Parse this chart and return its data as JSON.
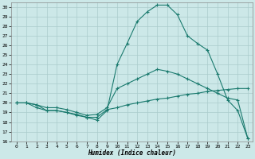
{
  "xlabel": "Humidex (Indice chaleur)",
  "xlim": [
    -0.5,
    23.5
  ],
  "ylim": [
    16,
    30.5
  ],
  "yticks": [
    16,
    17,
    18,
    19,
    20,
    21,
    22,
    23,
    24,
    25,
    26,
    27,
    28,
    29,
    30
  ],
  "xticks": [
    0,
    1,
    2,
    3,
    4,
    5,
    6,
    7,
    8,
    9,
    10,
    11,
    12,
    13,
    14,
    15,
    16,
    17,
    18,
    19,
    20,
    21,
    22,
    23
  ],
  "bg_color": "#cce8e8",
  "grid_color": "#aacccc",
  "line_color": "#1a7a6e",
  "line1_x": [
    0,
    1,
    2,
    3,
    4,
    5,
    6,
    7,
    8,
    9,
    10,
    11,
    12,
    13,
    14,
    15,
    16,
    17,
    18,
    19,
    20,
    21,
    22,
    23
  ],
  "line1_y": [
    20.0,
    20.0,
    19.8,
    19.2,
    19.2,
    19.0,
    18.8,
    18.5,
    18.5,
    19.3,
    19.5,
    19.8,
    20.0,
    20.2,
    20.4,
    20.5,
    20.7,
    20.9,
    21.0,
    21.2,
    21.3,
    21.4,
    21.5,
    21.5
  ],
  "line2_x": [
    0,
    1,
    2,
    3,
    4,
    5,
    6,
    7,
    8,
    9,
    10,
    11,
    12,
    13,
    14,
    15,
    16,
    17,
    18,
    19,
    20,
    21,
    22,
    23
  ],
  "line2_y": [
    20.0,
    20.0,
    19.8,
    19.5,
    19.5,
    19.3,
    19.0,
    18.7,
    18.8,
    19.5,
    21.5,
    22.0,
    22.5,
    23.0,
    23.5,
    23.3,
    23.0,
    22.5,
    22.0,
    21.5,
    21.0,
    20.5,
    20.3,
    16.3
  ],
  "line3_x": [
    0,
    1,
    2,
    3,
    4,
    5,
    6,
    7,
    8,
    9,
    10,
    11,
    12,
    13,
    14,
    15,
    16,
    17,
    18,
    19,
    20,
    21,
    22,
    23
  ],
  "line3_y": [
    20.0,
    20.0,
    19.5,
    19.2,
    19.2,
    19.0,
    18.7,
    18.5,
    18.2,
    19.2,
    24.0,
    26.2,
    28.5,
    29.5,
    30.2,
    30.2,
    29.2,
    27.0,
    26.2,
    25.5,
    23.0,
    20.3,
    19.2,
    16.3
  ]
}
